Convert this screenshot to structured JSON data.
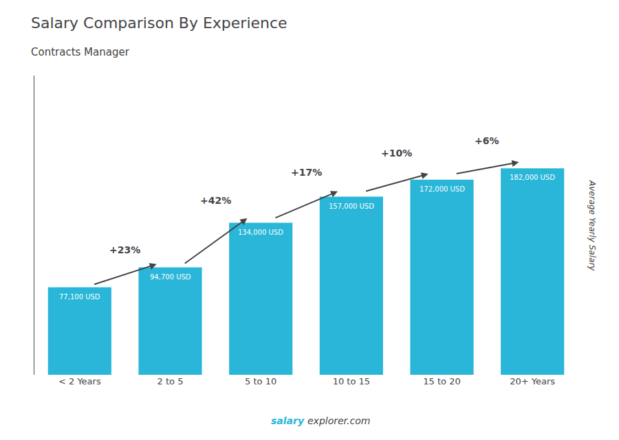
{
  "chart_data": {
    "type": "bar",
    "title": "Salary Comparison By Experience",
    "subtitle": "Contracts Manager",
    "ylabel": "Average Yearly Salary",
    "categories": [
      "< 2 Years",
      "2 to 5",
      "5 to 10",
      "10 to 15",
      "15 to 20",
      "20+ Years"
    ],
    "values": [
      77100,
      94700,
      134000,
      157000,
      172000,
      182000
    ],
    "value_labels": [
      "77,100 USD",
      "94,700 USD",
      "134,000 USD",
      "157,000 USD",
      "172,000 USD",
      "182,000 USD"
    ],
    "data_labels": true,
    "color": "#29b6d8",
    "pct_changes": [
      "+23%",
      "+42%",
      "+17%",
      "+10%",
      "+6%"
    ],
    "watermark": [
      "salary",
      "explorer.com"
    ],
    "ylim": [
      0,
      263900
    ],
    "yticks": [],
    "tick_labels": "x",
    "grid": false
  }
}
